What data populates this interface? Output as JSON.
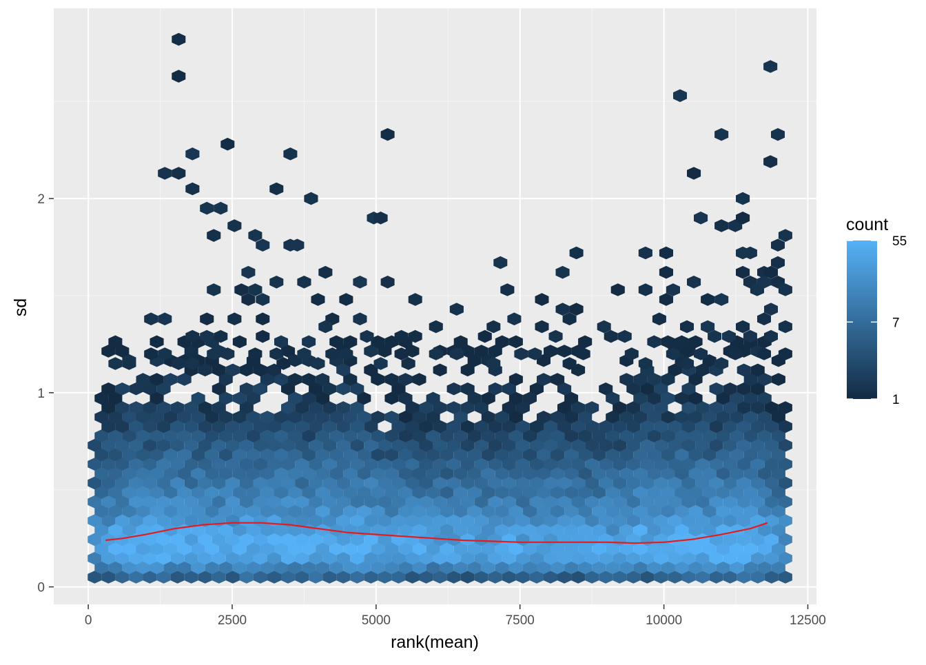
{
  "chart_data": {
    "type": "heatmap",
    "subtype": "hexbin",
    "xlabel": "rank(mean)",
    "ylabel": "sd",
    "xlim": [
      -600,
      12650
    ],
    "ylim": [
      -0.09,
      2.98
    ],
    "x_ticks": [
      0,
      2500,
      5000,
      7500,
      10000,
      12500
    ],
    "x_tick_labels": [
      "0",
      "2500",
      "5000",
      "7500",
      "10000",
      "12500"
    ],
    "y_ticks": [
      0,
      1,
      2
    ],
    "y_tick_labels": [
      "0",
      "1",
      "2"
    ],
    "grid": true,
    "legend": {
      "title": "count",
      "position": "right",
      "scale": "log",
      "min": 1,
      "max": 55,
      "breaks": [
        1,
        7,
        55
      ],
      "break_labels": [
        "1",
        "7",
        "55"
      ],
      "color_low": "#132B43",
      "color_high": "#56B1F7"
    },
    "trend_line": {
      "color": "#e41a1c",
      "x": [
        300,
        600,
        1000,
        1500,
        2000,
        2500,
        3000,
        3500,
        4000,
        4500,
        5000,
        5500,
        6000,
        6500,
        7000,
        7500,
        8000,
        8500,
        9000,
        9500,
        10000,
        10500,
        11000,
        11500,
        11800
      ],
      "y": [
        0.24,
        0.25,
        0.27,
        0.3,
        0.32,
        0.33,
        0.33,
        0.32,
        0.3,
        0.28,
        0.27,
        0.26,
        0.25,
        0.24,
        0.235,
        0.23,
        0.23,
        0.23,
        0.23,
        0.225,
        0.23,
        0.245,
        0.27,
        0.3,
        0.33
      ]
    },
    "density_profile": {
      "y_levels": [
        0.05,
        0.1,
        0.15,
        0.2,
        0.25,
        0.3,
        0.35,
        0.4,
        0.5,
        0.6,
        0.7,
        0.8,
        0.9,
        1.0,
        1.1,
        1.2,
        1.3
      ],
      "typical_count": [
        6,
        18,
        40,
        55,
        45,
        35,
        25,
        18,
        12,
        8,
        5,
        3,
        2,
        1.5,
        1.2,
        1,
        1
      ]
    },
    "sparse_points": [
      [
        1570,
        2.82
      ],
      [
        1570,
        2.63
      ],
      [
        11850,
        2.68
      ],
      [
        10280,
        2.53
      ],
      [
        5200,
        2.33
      ],
      [
        11000,
        2.33
      ],
      [
        11980,
        2.33
      ],
      [
        2420,
        2.28
      ],
      [
        1810,
        2.23
      ],
      [
        3510,
        2.23
      ],
      [
        11850,
        2.19
      ],
      [
        1330,
        2.13
      ],
      [
        1570,
        2.13
      ],
      [
        10520,
        2.13
      ],
      [
        1810,
        2.05
      ],
      [
        3270,
        2.05
      ],
      [
        3870,
        2.0
      ],
      [
        11370,
        2.0
      ],
      [
        2060,
        1.95
      ],
      [
        2300,
        1.95
      ],
      [
        4960,
        1.9
      ],
      [
        5080,
        1.9
      ],
      [
        10640,
        1.9
      ],
      [
        11000,
        1.86
      ],
      [
        11240,
        1.86
      ],
      [
        11370,
        1.9
      ],
      [
        2540,
        1.86
      ],
      [
        2180,
        1.81
      ],
      [
        2900,
        1.81
      ],
      [
        3030,
        1.76
      ],
      [
        3510,
        1.76
      ],
      [
        3630,
        1.76
      ],
      [
        12110,
        1.81
      ],
      [
        11980,
        1.76
      ],
      [
        10040,
        1.72
      ],
      [
        9680,
        1.72
      ],
      [
        8480,
        1.72
      ],
      [
        11500,
        1.72
      ],
      [
        11370,
        1.72
      ],
      [
        7160,
        1.67
      ],
      [
        11980,
        1.67
      ],
      [
        2780,
        1.62
      ],
      [
        4120,
        1.62
      ],
      [
        8240,
        1.62
      ],
      [
        10040,
        1.62
      ],
      [
        11370,
        1.62
      ],
      [
        11740,
        1.62
      ],
      [
        11860,
        1.62
      ],
      [
        3270,
        1.57
      ],
      [
        3750,
        1.57
      ],
      [
        4720,
        1.57
      ],
      [
        5200,
        1.57
      ],
      [
        10520,
        1.57
      ],
      [
        11500,
        1.57
      ],
      [
        11740,
        1.57
      ],
      [
        11980,
        1.57
      ],
      [
        2180,
        1.53
      ],
      [
        2660,
        1.53
      ],
      [
        2900,
        1.53
      ],
      [
        7280,
        1.53
      ],
      [
        9200,
        1.53
      ],
      [
        9680,
        1.53
      ],
      [
        10160,
        1.53
      ],
      [
        11620,
        1.53
      ],
      [
        12110,
        1.53
      ],
      [
        2780,
        1.48
      ],
      [
        3030,
        1.48
      ],
      [
        3990,
        1.48
      ],
      [
        4480,
        1.48
      ],
      [
        5680,
        1.48
      ],
      [
        7880,
        1.48
      ],
      [
        10040,
        1.48
      ],
      [
        10760,
        1.48
      ],
      [
        11000,
        1.48
      ],
      [
        6400,
        1.43
      ],
      [
        8240,
        1.43
      ],
      [
        8480,
        1.43
      ],
      [
        11860,
        1.43
      ],
      [
        1090,
        1.38
      ],
      [
        1330,
        1.38
      ],
      [
        2060,
        1.38
      ],
      [
        2540,
        1.38
      ],
      [
        3030,
        1.38
      ],
      [
        4240,
        1.38
      ],
      [
        4720,
        1.38
      ],
      [
        7400,
        1.38
      ],
      [
        8360,
        1.38
      ],
      [
        9920,
        1.38
      ],
      [
        11740,
        1.38
      ],
      [
        4120,
        1.34
      ],
      [
        6040,
        1.34
      ],
      [
        7040,
        1.34
      ],
      [
        7880,
        1.34
      ],
      [
        8960,
        1.34
      ],
      [
        10400,
        1.34
      ],
      [
        10760,
        1.34
      ],
      [
        11370,
        1.34
      ],
      [
        12110,
        1.34
      ],
      [
        1810,
        1.29
      ],
      [
        2060,
        1.29
      ],
      [
        2300,
        1.29
      ],
      [
        3030,
        1.29
      ],
      [
        4840,
        1.29
      ],
      [
        5440,
        1.29
      ],
      [
        5680,
        1.29
      ],
      [
        6890,
        1.29
      ],
      [
        8120,
        1.29
      ],
      [
        9080,
        1.29
      ],
      [
        9320,
        1.29
      ],
      [
        10880,
        1.29
      ],
      [
        11130,
        1.29
      ],
      [
        11500,
        1.29
      ],
      [
        11860,
        1.29
      ],
      [
        1090,
        1.2
      ],
      [
        1330,
        1.2
      ],
      [
        2180,
        1.2
      ],
      [
        2420,
        1.2
      ],
      [
        2900,
        1.2
      ],
      [
        3270,
        1.2
      ],
      [
        3750,
        1.2
      ],
      [
        4240,
        1.2
      ],
      [
        4480,
        1.2
      ],
      [
        5440,
        1.2
      ],
      [
        6040,
        1.2
      ],
      [
        6400,
        1.2
      ],
      [
        7520,
        1.2
      ],
      [
        7760,
        1.2
      ],
      [
        8600,
        1.2
      ],
      [
        9440,
        1.2
      ],
      [
        10160,
        1.2
      ],
      [
        10640,
        1.2
      ],
      [
        11240,
        1.2
      ],
      [
        11740,
        1.2
      ],
      [
        12110,
        1.2
      ],
      [
        470,
        1.15
      ],
      [
        710,
        1.15
      ],
      [
        1570,
        1.15
      ],
      [
        1810,
        1.15
      ],
      [
        3390,
        1.15
      ],
      [
        3990,
        1.15
      ],
      [
        5080,
        1.15
      ],
      [
        5560,
        1.15
      ],
      [
        7040,
        1.15
      ],
      [
        8360,
        1.15
      ],
      [
        9680,
        1.15
      ],
      [
        10400,
        1.15
      ],
      [
        11000,
        1.15
      ]
    ]
  }
}
